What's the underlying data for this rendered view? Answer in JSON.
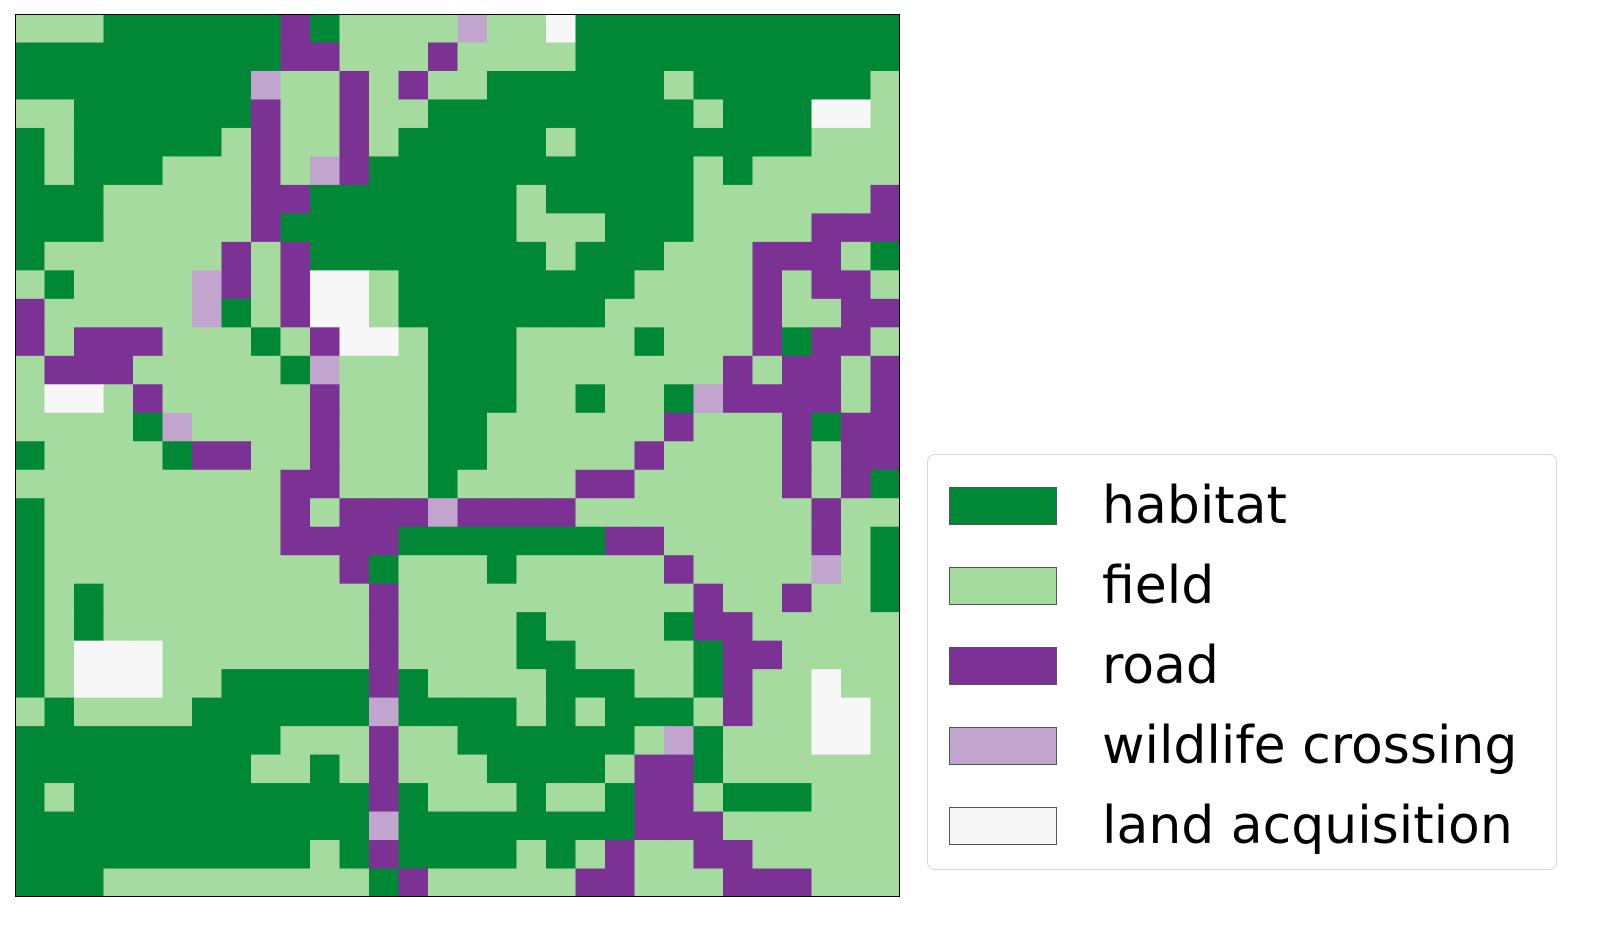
{
  "map": {
    "classes": [
      {
        "code": "H",
        "label": "habitat",
        "color": "#008837"
      },
      {
        "code": "F",
        "label": "field",
        "color": "#a6dba0"
      },
      {
        "code": "R",
        "label": "road",
        "color": "#7b3294"
      },
      {
        "code": "W",
        "label": "wildlife crossing",
        "color": "#c2a5cf"
      },
      {
        "code": "L",
        "label": "land acquisition",
        "color": "#f7f7f7"
      }
    ],
    "grid": [
      "FFFHHHHHHRHFFFFWFFLHHHHHHHHHHH",
      "HHHHHHHHHRRFFFRFFFFHHHHHHHHHHH",
      "HHHHHHHHWFFRFRFFHHHHHHFHHHHHHF",
      "FFHHHHHHRFFRFFHHHHHHHHHFHHHLLF",
      "HFHHHHHFRFFRFHHHHHFHHHHHHHHFFF",
      "HFHHHFFFRFWRHHHHHHHHHHHFHFFFFF",
      "HHHFFFFFRRHHHHHHHFHHHHHFFFFFFR",
      "HHHFFFFFRHHHHHHHHFFFHHHFFFFRRR",
      "HFFFFFFRFRHHHHHHHHFHHHFFFRRRFH",
      "FHFFFFWRFRLLFHHHHHHHHFFFFRFRRF",
      "RFFFFFWHFRLLFHHHHHHHFFFFFRFFRR",
      "RFRRRFFFHFRLLFHHHFFFFHFFFRHRRF",
      "FRRRFFFFFHWFFFHHHFFFFFFFRFRRFR",
      "FLLFRFFFFFRFFFHHHFFHFFHWRRRRFR",
      "FFFFHWFFFFRFFFHHFFFFFFRFFFRHRR",
      "HFFFFHRRFFRFFFHHFFFFFRFFFFRFRR",
      "FFFFFFFFFRRFFFHFFFFRRFFFFFRFRH",
      "HFFFFFFFFRFRRRWRRRRFFFFFFFFRFF",
      "HFFFFFFFFRRRRHHHHHHHRRFFFFFRFH",
      "HFFFFFFFFFFRHFFFHFFFFFRFFFFWFH",
      "HFHFFFFFFFFFRFFFFFFFFFFRFFRFFH",
      "HFHFFFFFFFFFRFFFFHFFFFHRRFFFFF",
      "HFLLLFFFFFFFRFFFFHHFFFFHRRFFFF",
      "HFLLLFFHHHHHRHFFFFHHHFFHRFFLFF",
      "FHFFFFHHHHHHWHHHHFHFHHHFRFFLLF",
      "HHHHHHHHHFFFRFFHHHHHHFWHFFFLLF",
      "HHHHHHHHFFHFRFFFHHHHFRRHFFFFFF",
      "HFHHHHHHHHHHRHFFFHFFHRRFHHHFFF",
      "HHHHHHHHHHHHWHHHHHHHHRRRFFFFFF",
      "HHHHHHHHHHFHRHHHHFHFRFFRRFFFFF",
      "HHHFFFFFFFFFHRFFFFFRRFFFRRRFFF"
    ]
  },
  "legend": {
    "items": [
      {
        "label": "habitat",
        "color": "#008837"
      },
      {
        "label": "field",
        "color": "#a6dba0"
      },
      {
        "label": "road",
        "color": "#7b3294"
      },
      {
        "label": "wildlife crossing",
        "color": "#c2a5cf"
      },
      {
        "label": "land acquisition",
        "color": "#f7f7f7"
      }
    ]
  }
}
